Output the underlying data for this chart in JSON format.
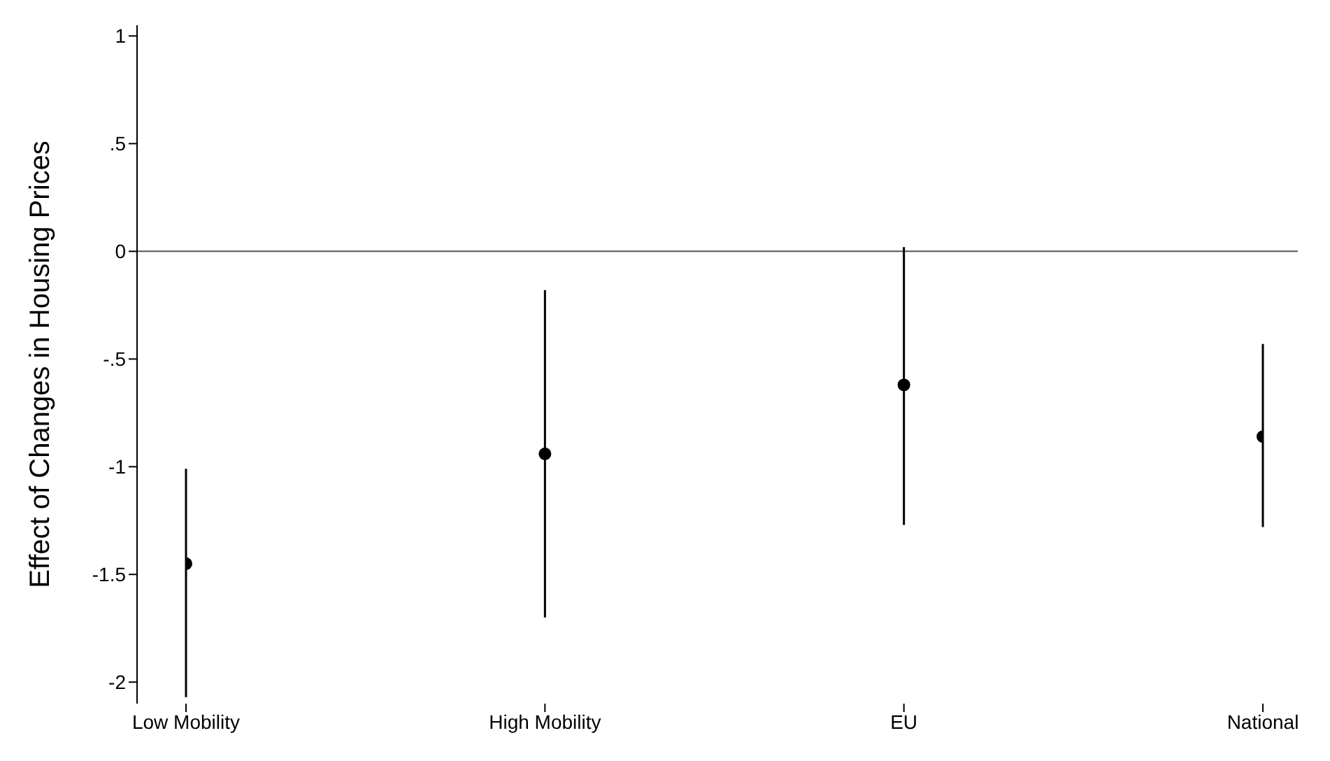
{
  "chart_data": {
    "type": "scatter",
    "ylabel": "Effect of Changes in Housing Prices",
    "categories": [
      "Low Mobility",
      "High Mobility",
      "EU",
      "National"
    ],
    "series": [
      {
        "color": "#000000",
        "values": [
          -1.45,
          -0.94,
          -0.62,
          -0.86
        ],
        "errors": [
          [
            -2.07,
            -1.01
          ],
          [
            -1.7,
            -0.18
          ],
          [
            -1.27,
            0.02
          ],
          [
            -1.28,
            -0.43
          ]
        ]
      }
    ],
    "ylim": [
      -2.1,
      1.05
    ],
    "yticks": [
      1,
      {
        "value": 0.5,
        "label": ".5"
      },
      0,
      {
        "value": -0.5,
        "label": "-.5"
      },
      -1,
      {
        "value": -1.5,
        "label": "-1.5"
      },
      -2
    ],
    "ref_lines": [
      {
        "axis": "y",
        "value": 0,
        "color": "#555555"
      }
    ],
    "marker": "circle",
    "grid": false
  }
}
